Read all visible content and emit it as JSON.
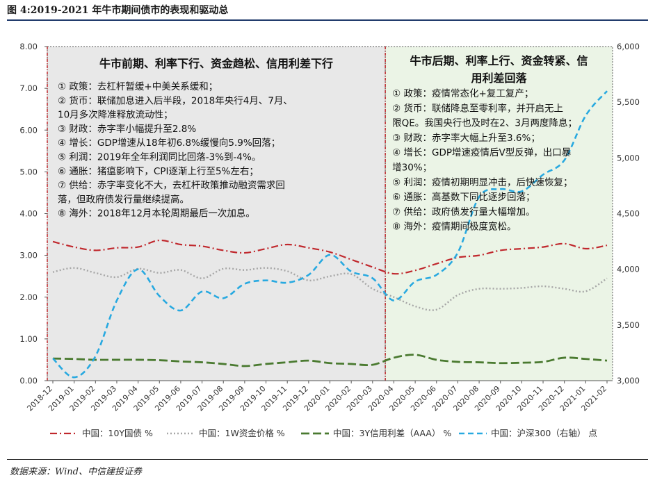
{
  "figure_title": "图 4:2019-2021 年牛市期间债市的表现和驱动总",
  "source_note": "数据来源：Wind、中信建投证券",
  "chart_data": {
    "type": "line",
    "x": [
      "2018-12",
      "2019-01",
      "2019-02",
      "2019-03",
      "2019-04",
      "2019-05",
      "2019-06",
      "2019-07",
      "2019-08",
      "2019-09",
      "2019-10",
      "2019-11",
      "2019-12",
      "2020-01",
      "2020-02",
      "2020-03",
      "2020-04",
      "2020-05",
      "2020-06",
      "2020-07",
      "2020-08",
      "2020-09",
      "2020-10",
      "2020-11",
      "2020-12",
      "2021-01",
      "2021-02"
    ],
    "ylim_left": [
      0,
      8
    ],
    "yticks_left": [
      "0.00",
      "1.00",
      "2.00",
      "3.00",
      "4.00",
      "5.00",
      "6.00",
      "7.00",
      "8.00"
    ],
    "ylim_right": [
      3000,
      6000
    ],
    "yticks_right": [
      "3,000",
      "3,500",
      "4,000",
      "4,500",
      "5,000",
      "5,500",
      "6,000"
    ],
    "series": [
      {
        "name": "中国：10Y国债 %",
        "axis": "left",
        "color": "#c0282d",
        "dash": "dashdot",
        "values": [
          3.33,
          3.2,
          3.12,
          3.18,
          3.2,
          3.36,
          3.26,
          3.22,
          3.12,
          3.06,
          3.16,
          3.26,
          3.18,
          3.08,
          2.9,
          2.72,
          2.56,
          2.64,
          2.8,
          2.95,
          3.0,
          3.12,
          3.16,
          3.2,
          3.28,
          3.16,
          3.24
        ]
      },
      {
        "name": "中国：1W资金价格 %",
        "axis": "left",
        "color": "#a6a6a6",
        "dash": "dot",
        "values": [
          2.6,
          2.7,
          2.58,
          2.48,
          2.68,
          2.58,
          2.65,
          2.45,
          2.68,
          2.65,
          2.7,
          2.62,
          2.4,
          2.5,
          2.55,
          2.2,
          2.0,
          1.78,
          1.7,
          2.05,
          2.2,
          2.2,
          2.22,
          2.26,
          2.2,
          2.14,
          2.45
        ]
      },
      {
        "name": "中国：3Y信用利差（AAA） %",
        "axis": "left",
        "color": "#4a7a30",
        "dash": "longdash",
        "values": [
          0.53,
          0.52,
          0.5,
          0.5,
          0.5,
          0.49,
          0.46,
          0.44,
          0.4,
          0.35,
          0.4,
          0.44,
          0.48,
          0.42,
          0.4,
          0.38,
          0.55,
          0.62,
          0.5,
          0.45,
          0.44,
          0.42,
          0.43,
          0.45,
          0.55,
          0.52,
          0.48
        ]
      },
      {
        "name": "中国：沪深300（右轴） 点",
        "axis": "right",
        "color": "#28a9e0",
        "dash": "dash",
        "values": [
          3200,
          3030,
          3220,
          3720,
          4000,
          3760,
          3630,
          3800,
          3740,
          3870,
          3900,
          3880,
          3950,
          4130,
          3980,
          3920,
          3720,
          3890,
          3950,
          4150,
          4650,
          4720,
          4700,
          4850,
          4980,
          5380,
          5600
        ]
      }
    ],
    "legend_position": "bottom",
    "annotations": [
      {
        "title": "牛市前期、利率下行、资金趋松、信用利差下行",
        "lines": [
          "① 政策：去杠杆暂缓+中美关系缓和；",
          "② 货币：联储加息进入后半段，2018年央行4月、7月、",
          "10月多次降准释放流动性；",
          "③ 财政：赤字率小幅提升至2.8%",
          "④ 增长：GDP增速从18年初6.8%缓慢向5.9%回落；",
          "⑤ 利润：2019年全年利润同比回落-3%到-4%。",
          "⑥ 通胀：猪瘟影响下，CPI逐渐上行至5%左右；",
          "⑦ 供给：赤字率变化不大，去杠杆政策推动融资需求回",
          "落，但政府债发行量继续提高。",
          "⑧ 海外：2018年12月本轮周期最后一次加息。"
        ]
      },
      {
        "title": "牛市后期、利率上行、资金转紧、信用利差回落",
        "title_lines": [
          "牛市后期、利率上行、资金转紧、信",
          "用利差回落"
        ],
        "lines": [
          "① 政策：疫情常态化+复工复产；",
          "② 货币：联储降息至零利率，并开启无上",
          "限QE。我国央行也及时在2、3月两度降息；",
          "③ 财政：赤字率大幅上升至3.6%；",
          "④ 增长：GDP增速疫情后V型反弹，出口暴",
          "增30%；",
          "⑤ 利润：疫情初期明显冲击，后快速恢复；",
          "⑥ 通胀：高基数下同比逐步回落；",
          "⑦ 供给：政府债发行量大幅增加。",
          "⑧ 海外：疫情期间极度宽松。"
        ]
      }
    ],
    "colors": {
      "left_region": "#e8e8e8",
      "right_region": "#ebf4e6",
      "divider": "#c0282d",
      "region_border": "#555555"
    }
  }
}
